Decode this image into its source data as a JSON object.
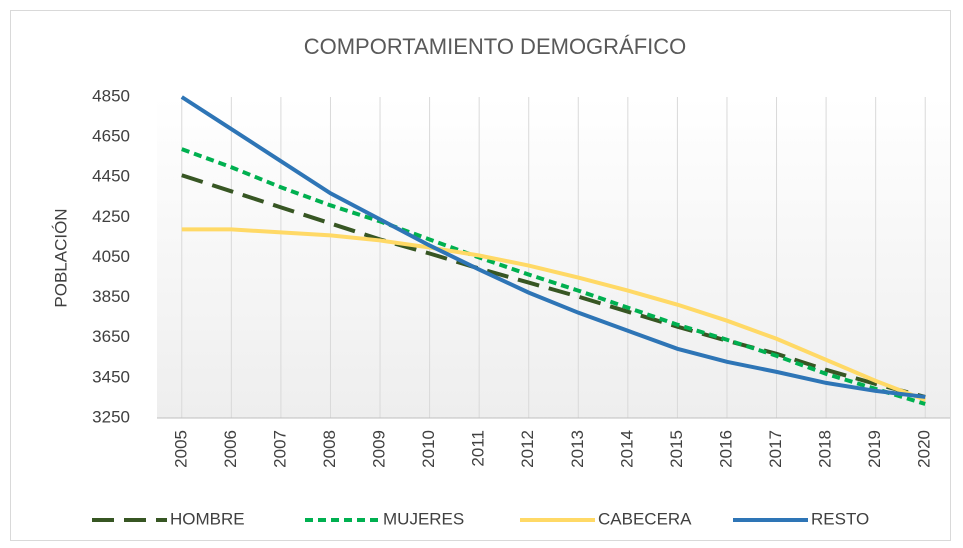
{
  "chart_data": {
    "type": "line",
    "title": "COMPORTAMIENTO  DEMOGRÁFICO",
    "y_label": "POBLACIÓN",
    "categories": [
      "2005",
      "2006",
      "2007",
      "2008",
      "2009",
      "2010",
      "2011",
      "2012",
      "2013",
      "2014",
      "2015",
      "2016",
      "2017",
      "2018",
      "2019",
      "2020"
    ],
    "series": [
      {
        "name": "HOMBRE",
        "color": "#375623",
        "dash": "long",
        "values": [
          4460,
          4380,
          4300,
          4220,
          4140,
          4070,
          3995,
          3925,
          3855,
          3780,
          3705,
          3635,
          3570,
          3490,
          3420,
          3355
        ]
      },
      {
        "name": "MUJERES",
        "color": "#00b050",
        "dash": "short",
        "values": [
          4590,
          4500,
          4400,
          4310,
          4230,
          4140,
          4050,
          3965,
          3885,
          3800,
          3715,
          3640,
          3560,
          3470,
          3395,
          3320
        ]
      },
      {
        "name": "CABECERA",
        "color": "#ffd966",
        "dash": "solid",
        "values": [
          4190,
          4190,
          4175,
          4160,
          4135,
          4100,
          4060,
          4010,
          3950,
          3885,
          3815,
          3735,
          3645,
          3540,
          3435,
          3340
        ]
      },
      {
        "name": "RESTO",
        "color": "#2e75b6",
        "dash": "solid",
        "values": [
          4850,
          4690,
          4530,
          4370,
          4240,
          4110,
          3990,
          3875,
          3775,
          3685,
          3595,
          3530,
          3480,
          3425,
          3385,
          3355
        ]
      }
    ],
    "ylim": [
      3250,
      4850
    ],
    "yticks": [
      3250,
      3450,
      3650,
      3850,
      4050,
      4250,
      4450,
      4650,
      4850
    ],
    "grid": "vertical",
    "legend": "bottom"
  }
}
